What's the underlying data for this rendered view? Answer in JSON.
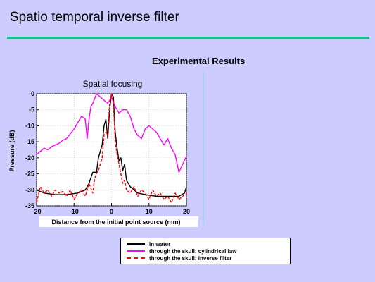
{
  "slide": {
    "title": "Spatio temporal inverse filter",
    "section_heading": "Experimental Results"
  },
  "colors": {
    "background": "#ccccff",
    "title_rule": "#19c08f",
    "in_water": "#000000",
    "cylindrical": "#ff00ff",
    "inverse": "#ff0000"
  },
  "chart_data": {
    "type": "line",
    "title": "Spatial focusing",
    "xlabel": "Distance from the initial point source (mm)",
    "ylabel": "Pressure (dB)",
    "xlim": [
      -20,
      20
    ],
    "ylim": [
      -35,
      0
    ],
    "xticks": [
      "-20",
      "-10",
      "0",
      "10",
      "20"
    ],
    "yticks": [
      "0",
      "-5",
      "-10",
      "-15",
      "-20",
      "-25",
      "-30",
      "-35"
    ],
    "grid": true,
    "legend_position": "below",
    "series": [
      {
        "name": "in water",
        "color": "#000000",
        "dash": false,
        "x": [
          -20,
          -18,
          -15,
          -12,
          -9,
          -7,
          -6,
          -5,
          -4,
          -3.5,
          -3,
          -2.5,
          -2,
          -1.5,
          -1,
          -0.5,
          0,
          0.5,
          1,
          1.5,
          2,
          2.5,
          3,
          3.5,
          4,
          5,
          6,
          7,
          9,
          12,
          15,
          18,
          19.5,
          20
        ],
        "y": [
          -30,
          -31,
          -31.5,
          -31.5,
          -31,
          -30,
          -28,
          -24.5,
          -24.5,
          -20,
          -18,
          -16,
          -10,
          -8,
          -14,
          -5,
          0,
          -1,
          -12,
          -17,
          -21,
          -20,
          -24,
          -22,
          -27,
          -29,
          -30,
          -31,
          -31.5,
          -32,
          -32,
          -32,
          -31,
          -29
        ]
      },
      {
        "name": "through the skull: cylindrical law",
        "color": "#ff00ff",
        "dash": false,
        "x": [
          -20,
          -19,
          -18,
          -17,
          -16,
          -15,
          -14,
          -13,
          -12,
          -11,
          -10,
          -9,
          -8,
          -7,
          -6.5,
          -6,
          -5.5,
          -5,
          -4,
          -3,
          -2,
          -1,
          0,
          1,
          2,
          3,
          4,
          5,
          6,
          7,
          8,
          9,
          10,
          11,
          12,
          13,
          14,
          15,
          16,
          17,
          18,
          19,
          20
        ],
        "y": [
          -19,
          -18,
          -17,
          -17.5,
          -16.5,
          -16,
          -15.5,
          -14.5,
          -14,
          -12.5,
          -11,
          -9,
          -7,
          -8,
          -14,
          -8,
          -4,
          -3,
          0,
          -1,
          -2,
          -3,
          -1,
          -4,
          -6,
          -5,
          -5,
          -7,
          -11,
          -13,
          -14,
          -11,
          -10,
          -11,
          -12,
          -14,
          -16,
          -14,
          -17,
          -19,
          -24.5,
          -22,
          -19.5
        ]
      },
      {
        "name": "through the skull: inverse filter",
        "color": "#ff0000",
        "dash": true,
        "x": [
          -20,
          -19,
          -18,
          -17,
          -16,
          -15,
          -14,
          -13,
          -12,
          -11,
          -10,
          -9,
          -8,
          -7,
          -6,
          -5,
          -4.5,
          -4,
          -3.5,
          -3,
          -2.5,
          -2,
          -1.5,
          -1,
          -0.5,
          0,
          0.5,
          1,
          1.5,
          2,
          2.5,
          3,
          3.5,
          4,
          5,
          6,
          7,
          8,
          9,
          10,
          11,
          12,
          13,
          14,
          15,
          16,
          17,
          18,
          19,
          20
        ],
        "y": [
          -34,
          -29,
          -31,
          -30,
          -32,
          -30,
          -31,
          -30.5,
          -32,
          -30,
          -33,
          -31,
          -30,
          -32,
          -28,
          -31,
          -26.5,
          -25,
          -24,
          -22,
          -20,
          -13,
          -12,
          -13,
          -3,
          0,
          -3,
          -15,
          -19,
          -22,
          -25,
          -28,
          -27,
          -30,
          -31,
          -29,
          -32,
          -30,
          -31,
          -33,
          -30,
          -32,
          -31,
          -33,
          -32,
          -34,
          -31,
          -33,
          -32,
          -31
        ]
      }
    ]
  }
}
